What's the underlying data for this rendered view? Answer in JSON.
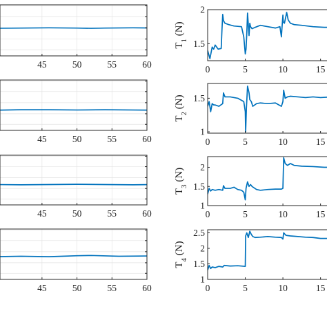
{
  "colors": {
    "series": "#0072bd",
    "axis": "#262626",
    "grid": "#e3e3e3"
  },
  "chart_data": [
    {
      "type": "line",
      "panel": "left-1",
      "x": [
        38,
        42,
        46,
        50,
        52,
        54,
        58,
        62
      ],
      "y": [
        0.54,
        0.545,
        0.55,
        0.545,
        0.54,
        0.545,
        0.55,
        0.545
      ],
      "xlim": [
        39,
        60
      ],
      "ylim": [
        0,
        1
      ],
      "xticks": [
        "45",
        "50",
        "55",
        "60"
      ],
      "yticks": [],
      "ylabel": "",
      "grid": true,
      "legend": "none"
    },
    {
      "type": "line",
      "panel": "left-2",
      "x": [
        38,
        42,
        46,
        50,
        54,
        58,
        62
      ],
      "y": [
        0.4,
        0.41,
        0.41,
        0.405,
        0.41,
        0.405,
        0.4
      ],
      "xlim": [
        39,
        60
      ],
      "ylim": [
        0,
        1
      ],
      "xticks": [
        "45",
        "50",
        "55",
        "60"
      ],
      "yticks": [],
      "ylabel": "",
      "grid": true,
      "legend": "none"
    },
    {
      "type": "line",
      "panel": "left-3",
      "x": [
        38,
        42,
        46,
        50,
        54,
        58,
        62
      ],
      "y": [
        0.41,
        0.405,
        0.41,
        0.415,
        0.41,
        0.405,
        0.41
      ],
      "xlim": [
        39,
        60
      ],
      "ylim": [
        0,
        1
      ],
      "xticks": [
        "45",
        "50",
        "55",
        "60"
      ],
      "yticks": [],
      "ylabel": "",
      "grid": true,
      "legend": "none"
    },
    {
      "type": "line",
      "panel": "left-4",
      "x": [
        38,
        42,
        46,
        50,
        52,
        56,
        60,
        62
      ],
      "y": [
        0.45,
        0.46,
        0.45,
        0.47,
        0.475,
        0.46,
        0.465,
        0.47
      ],
      "xlim": [
        39,
        60
      ],
      "ylim": [
        0,
        1
      ],
      "xticks": [
        "45",
        "50",
        "55",
        "60"
      ],
      "yticks": [],
      "ylabel": "",
      "grid": true,
      "legend": "none"
    },
    {
      "type": "line",
      "panel": "right-1",
      "x": [
        0,
        0.3,
        0.6,
        0.8,
        1.0,
        1.4,
        1.8,
        1.9,
        2.0,
        2.1,
        2.3,
        2.8,
        3.5,
        4.5,
        4.8,
        5.0,
        5.1,
        5.2,
        5.3,
        5.5,
        5.6,
        5.7,
        5.9,
        6.3,
        7.0,
        8.0,
        9.0,
        9.6,
        9.8,
        9.9,
        10.0,
        10.05,
        10.2,
        10.3,
        10.5,
        10.7,
        11.0,
        11.5,
        12.5,
        14.0,
        15.5,
        16.5
      ],
      "y": [
        1.4,
        1.28,
        1.45,
        1.42,
        1.48,
        1.42,
        1.43,
        1.7,
        1.93,
        1.84,
        1.8,
        1.78,
        1.76,
        1.75,
        1.6,
        1.35,
        1.42,
        1.65,
        1.95,
        1.62,
        1.8,
        1.75,
        1.72,
        1.74,
        1.77,
        1.75,
        1.73,
        1.75,
        1.6,
        1.77,
        1.92,
        1.82,
        1.8,
        1.85,
        1.96,
        1.85,
        1.8,
        1.78,
        1.77,
        1.75,
        1.74,
        1.74
      ],
      "xlim": [
        0,
        16.5
      ],
      "ylim": [
        1.25,
        2
      ],
      "xticks": [
        "0",
        "5",
        "10",
        "15"
      ],
      "yticks": [
        "1.5",
        "2"
      ],
      "ylabel": "T",
      "ylabel_sub": "1",
      "ylabel_unit": " (N)",
      "grid": false,
      "legend": "none"
    },
    {
      "type": "line",
      "panel": "right-2",
      "x": [
        0,
        0.2,
        0.4,
        0.6,
        0.8,
        1.0,
        1.5,
        2.0,
        2.1,
        2.3,
        3.0,
        4.0,
        4.8,
        5.0,
        5.05,
        5.15,
        5.3,
        5.5,
        5.6,
        5.8,
        6.0,
        6.5,
        7.0,
        8.0,
        9.0,
        9.8,
        10.0,
        10.1,
        10.3,
        10.6,
        11.0,
        12.0,
        13.0,
        14.0,
        15.0,
        16.5
      ],
      "y": [
        1.38,
        1.45,
        1.3,
        1.42,
        1.4,
        1.4,
        1.38,
        1.42,
        1.58,
        1.52,
        1.52,
        1.5,
        1.45,
        1.3,
        1.0,
        1.35,
        1.68,
        1.58,
        1.48,
        1.45,
        1.38,
        1.42,
        1.43,
        1.42,
        1.43,
        1.38,
        1.45,
        1.62,
        1.5,
        1.52,
        1.53,
        1.52,
        1.51,
        1.52,
        1.51,
        1.52
      ],
      "xlim": [
        0,
        16.5
      ],
      "ylim": [
        0.98,
        1.72
      ],
      "xticks": [
        "0",
        "5",
        "10",
        "15"
      ],
      "yticks": [
        "1",
        "1.5"
      ],
      "ylabel": "T",
      "ylabel_sub": "2",
      "ylabel_unit": " (N)",
      "grid": false,
      "legend": "none"
    },
    {
      "type": "line",
      "panel": "right-3",
      "x": [
        0,
        0.2,
        0.4,
        0.6,
        1.0,
        1.5,
        2.0,
        2.1,
        2.3,
        2.5,
        3.0,
        3.5,
        4.0,
        4.5,
        4.8,
        5.0,
        5.1,
        5.3,
        5.5,
        5.7,
        5.9,
        6.5,
        7.0,
        8.0,
        9.0,
        9.8,
        10.0,
        10.1,
        10.3,
        10.6,
        11.0,
        11.5,
        12.5,
        14.0,
        15.5,
        16.5
      ],
      "y": [
        1.3,
        1.45,
        1.38,
        1.42,
        1.4,
        1.42,
        1.4,
        1.52,
        1.45,
        1.45,
        1.45,
        1.48,
        1.42,
        1.4,
        1.35,
        1.15,
        1.45,
        1.62,
        1.5,
        1.55,
        1.5,
        1.42,
        1.4,
        1.42,
        1.43,
        1.43,
        1.45,
        2.25,
        2.1,
        2.05,
        2.1,
        2.05,
        2.03,
        2.02,
        2.0,
        2.0
      ],
      "xlim": [
        0,
        16.5
      ],
      "ylim": [
        1,
        2.28
      ],
      "xticks": [
        "0",
        "5",
        "10",
        "15"
      ],
      "yticks": [
        "1",
        "1.5",
        "2"
      ],
      "ylabel": "T",
      "ylabel_sub": "3",
      "ylabel_unit": " (N)",
      "grid": false,
      "legend": "none"
    },
    {
      "type": "line",
      "panel": "right-4",
      "x": [
        0,
        0.2,
        0.4,
        0.6,
        1.0,
        1.5,
        2.0,
        2.2,
        3.0,
        4.0,
        5.0,
        5.05,
        5.2,
        5.4,
        5.6,
        5.8,
        6.0,
        6.3,
        7.0,
        8.0,
        9.0,
        9.8,
        10.0,
        10.1,
        10.4,
        11.0,
        12.0,
        13.0,
        14.0,
        15.0,
        16.5
      ],
      "y": [
        1.3,
        1.45,
        1.35,
        1.4,
        1.38,
        1.42,
        1.4,
        1.45,
        1.43,
        1.44,
        1.42,
        2.4,
        2.5,
        2.35,
        2.55,
        2.45,
        2.38,
        2.35,
        2.36,
        2.38,
        2.36,
        2.35,
        2.3,
        2.5,
        2.42,
        2.4,
        2.38,
        2.36,
        2.35,
        2.32,
        2.32
      ],
      "xlim": [
        0,
        16.5
      ],
      "ylim": [
        1,
        2.6
      ],
      "xticks": [
        "0",
        "5",
        "10",
        "15"
      ],
      "yticks": [
        "1",
        "1.5",
        "2",
        "2.5"
      ],
      "ylabel": "T",
      "ylabel_sub": "4",
      "ylabel_unit": " (N)",
      "grid": false,
      "legend": "none"
    }
  ]
}
